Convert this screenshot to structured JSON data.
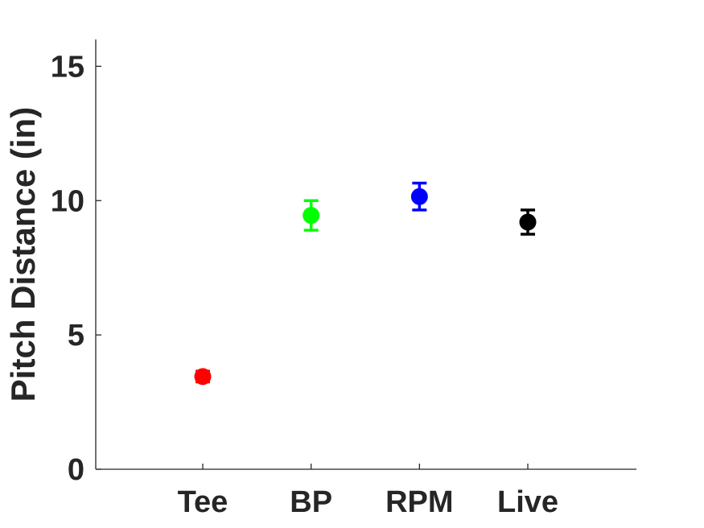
{
  "chart_data": {
    "type": "scatter",
    "title": "",
    "xlabel": "",
    "ylabel": "Pitch Distance (in)",
    "ylim": [
      0,
      16
    ],
    "yticks": [
      "0",
      "5",
      "10",
      "15"
    ],
    "categories": [
      "Tee",
      "BP",
      "RPM",
      "Live"
    ],
    "values": [
      3.45,
      9.45,
      10.15,
      9.2
    ],
    "error": [
      0.2,
      0.55,
      0.5,
      0.45
    ],
    "colors": [
      "#ff0000",
      "#00ff00",
      "#0000ff",
      "#000000"
    ],
    "grid": false,
    "legend": "none",
    "box": "left-bottom axes only"
  }
}
